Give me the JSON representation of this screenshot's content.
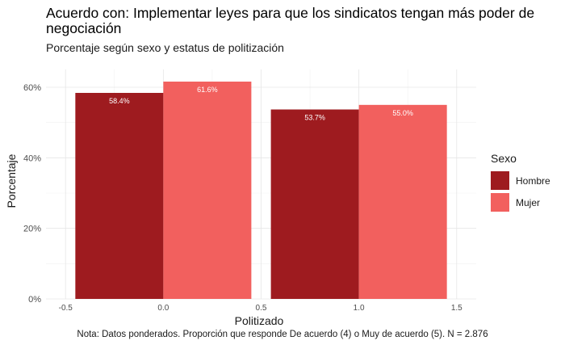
{
  "title": "Acuerdo con: Implementar leyes para que los sindicatos tengan más poder de negociación",
  "subtitle": "Porcentaje según sexo y estatus de politización",
  "caption": "Nota: Datos ponderados. Proporción que responde De acuerdo (4) o Muy de acuerdo (5). N = 2.876",
  "legend": {
    "title": "Sexo",
    "items": [
      {
        "label": "Hombre",
        "color": "#9e1b1f"
      },
      {
        "label": "Mujer",
        "color": "#f2605e"
      }
    ]
  },
  "chart_data": {
    "type": "bar",
    "xlabel": "Politizado",
    "ylabel": "Porcentaje",
    "xlim": [
      -0.5,
      1.5
    ],
    "x_ticks": [
      -0.5,
      0.0,
      0.5,
      1.0,
      1.5
    ],
    "x_tick_labels": [
      "-0.5",
      "0.0",
      "0.5",
      "1.0",
      "1.5"
    ],
    "ylim": [
      0,
      0.6
    ],
    "y_ticks": [
      0,
      0.2,
      0.4,
      0.6
    ],
    "y_tick_labels": [
      "0%",
      "20%",
      "40%",
      "60%"
    ],
    "grid": true,
    "legend_position": "right",
    "categories": [
      0,
      1
    ],
    "series": [
      {
        "name": "Hombre",
        "color": "#9e1b1f",
        "values": [
          0.584,
          0.537
        ],
        "labels": [
          "58.4%",
          "53.7%"
        ]
      },
      {
        "name": "Mujer",
        "color": "#f2605e",
        "values": [
          0.616,
          0.55
        ],
        "labels": [
          "61.6%",
          "55.0%"
        ]
      }
    ]
  }
}
